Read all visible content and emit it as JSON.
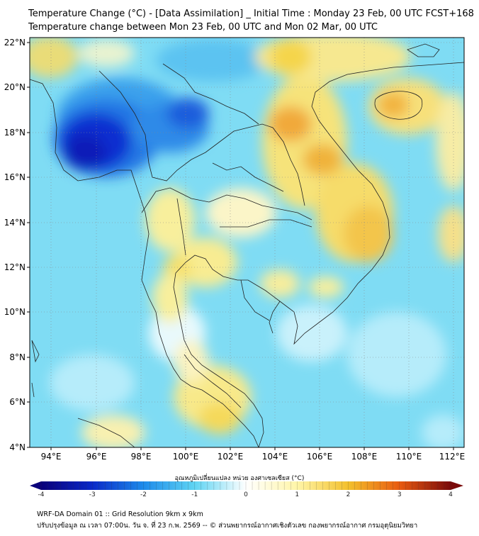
{
  "header": {
    "title_line1": "Temperature Change (°C) - [Data Assimilation] _ Initial Time : Monday 23 Feb, 00 UTC FCST+168",
    "title_line2": "Temperature change between Mon 23 Feb, 00 UTC and Mon 02 Mar, 00 UTC"
  },
  "map": {
    "lat_ticks": [
      "22°N",
      "20°N",
      "18°N",
      "16°N",
      "14°N",
      "12°N",
      "10°N",
      "8°N",
      "6°N",
      "4°N"
    ],
    "lon_ticks": [
      "94°E",
      "96°E",
      "98°E",
      "100°E",
      "102°E",
      "104°E",
      "106°E",
      "108°E",
      "110°E",
      "112°E"
    ],
    "background_color": "#7fdcf4"
  },
  "colorbar": {
    "title": "อุณหภูมิเปลี่ยนแปลง หน่วย องศาเซลเซียส (°C)",
    "ticks": [
      "-4",
      "-3",
      "-2",
      "-1",
      "0",
      "1",
      "2",
      "3",
      "4"
    ],
    "min": -4,
    "max": 4,
    "colors": {
      "minus4": "#0a007a",
      "minus3": "#0a29c8",
      "minus2": "#1e8bea",
      "minus1": "#5fd4f3",
      "zero": "#ffffff",
      "plus1": "#fff5a8",
      "plus2": "#f3c02c",
      "plus3": "#e85a10",
      "plus4": "#7a0a0a"
    }
  },
  "footer": {
    "line1": "WRF-DA Domain 01 :: Grid Resolution 9km x 9km",
    "line2": "ปรับปรุงข้อมูล ณ เวลา 07:00น. วัน จ. ที่ 23 ก.พ. 2569 -- © ส่วนพยากรณ์อากาศเชิงตัวเลข กองพยากรณ์อากาศ กรมอุตุนิยมวิทยา"
  }
}
